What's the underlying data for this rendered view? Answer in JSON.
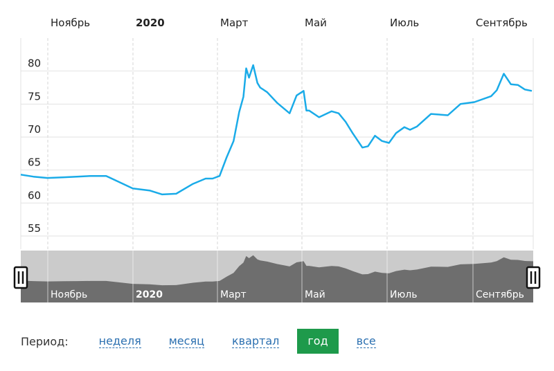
{
  "chart_data": {
    "type": "line",
    "months_top": [
      {
        "label": "Ноябрь",
        "bold": false
      },
      {
        "label": "2020",
        "bold": true
      },
      {
        "label": "Март",
        "bold": false
      },
      {
        "label": "Май",
        "bold": false
      },
      {
        "label": "Июль",
        "bold": false
      },
      {
        "label": "Сентябрь",
        "bold": false
      }
    ],
    "months_navigator": [
      {
        "label": "Ноябрь",
        "bold": false
      },
      {
        "label": "2020",
        "bold": true
      },
      {
        "label": "Март",
        "bold": false
      },
      {
        "label": "Май",
        "bold": false
      },
      {
        "label": "Июль",
        "bold": false
      },
      {
        "label": "Сентябрь",
        "bold": false
      }
    ],
    "y_ticks": [
      55,
      60,
      65,
      70,
      75,
      80
    ],
    "ylim": [
      53,
      85
    ],
    "grid": true,
    "series": [
      {
        "color": "#1aabe8",
        "x": [
          "2019-10-01",
          "2019-10-10",
          "2019-10-20",
          "2019-11-01",
          "2019-11-10",
          "2019-11-20",
          "2019-12-01",
          "2019-12-10",
          "2019-12-20",
          "2020-01-01",
          "2020-01-10",
          "2020-01-20",
          "2020-02-01",
          "2020-02-10",
          "2020-02-15",
          "2020-02-20",
          "2020-02-25",
          "2020-03-01",
          "2020-03-05",
          "2020-03-08",
          "2020-03-10",
          "2020-03-12",
          "2020-03-15",
          "2020-03-18",
          "2020-03-20",
          "2020-03-25",
          "2020-04-01",
          "2020-04-10",
          "2020-04-15",
          "2020-04-20",
          "2020-04-22",
          "2020-04-24",
          "2020-05-01",
          "2020-05-10",
          "2020-05-15",
          "2020-05-20",
          "2020-05-25",
          "2020-06-01",
          "2020-06-05",
          "2020-06-10",
          "2020-06-15",
          "2020-06-20",
          "2020-06-25",
          "2020-07-01",
          "2020-07-05",
          "2020-07-10",
          "2020-07-20",
          "2020-08-01",
          "2020-08-10",
          "2020-08-20",
          "2020-09-01",
          "2020-09-05",
          "2020-09-10",
          "2020-09-15",
          "2020-09-20",
          "2020-09-25",
          "2020-09-30"
        ],
        "y": [
          64.3,
          64.0,
          63.8,
          63.9,
          64.0,
          64.1,
          64.1,
          63.2,
          62.2,
          61.9,
          61.3,
          61.4,
          62.9,
          63.7,
          63.7,
          64.1,
          66.9,
          69.4,
          73.8,
          76.1,
          80.4,
          79.0,
          80.9,
          78.2,
          77.5,
          76.8,
          75.2,
          73.6,
          76.3,
          77.0,
          74.0,
          74.0,
          73.0,
          73.9,
          73.6,
          72.3,
          70.6,
          68.4,
          68.6,
          70.2,
          69.4,
          69.1,
          70.6,
          71.5,
          71.1,
          71.6,
          73.5,
          73.3,
          75.0,
          75.3,
          76.2,
          77.1,
          79.6,
          78.0,
          77.9,
          77.2,
          77.0
        ]
      }
    ],
    "navigator": {
      "fill_color": "#6e6e6e",
      "background_color": "#cbcbcb"
    }
  },
  "period": {
    "label": "Период:",
    "options": [
      {
        "label": "неделя",
        "active": false
      },
      {
        "label": "месяц",
        "active": false
      },
      {
        "label": "квартал",
        "active": false
      },
      {
        "label": "год",
        "active": true
      },
      {
        "label": "все",
        "active": false
      }
    ]
  }
}
